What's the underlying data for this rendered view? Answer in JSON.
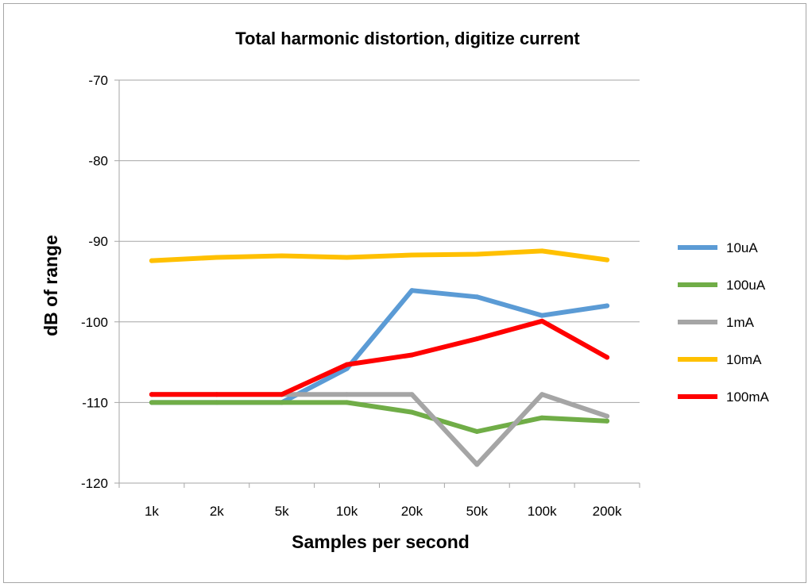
{
  "chart_data": {
    "type": "line",
    "title": "Total harmonic distortion, digitize current",
    "xlabel": "Samples per second",
    "ylabel": "dB of range",
    "categories": [
      "1k",
      "2k",
      "5k",
      "10k",
      "20k",
      "50k",
      "100k",
      "200k"
    ],
    "ylim": [
      -120,
      -70
    ],
    "yticks": [
      -70,
      -80,
      -90,
      -100,
      -110,
      -120
    ],
    "grid": "horizontal",
    "legend_position": "right",
    "series": [
      {
        "name": "10uA",
        "color": "#5b9bd5",
        "values": [
          -110,
          -110,
          -110,
          -105.8,
          -96.1,
          -96.9,
          -99.2,
          -98.0
        ]
      },
      {
        "name": "100uA",
        "color": "#70ad47",
        "values": [
          -110,
          -110,
          -110,
          -110,
          -111.2,
          -113.6,
          -111.9,
          -112.3
        ]
      },
      {
        "name": "1mA",
        "color": "#a5a5a5",
        "values": [
          -109,
          -109,
          -109,
          -109,
          -109,
          -117.7,
          -109,
          -111.7
        ]
      },
      {
        "name": "10mA",
        "color": "#ffc000",
        "values": [
          -92.4,
          -92.0,
          -91.8,
          -92.0,
          -91.7,
          -91.6,
          -91.2,
          -92.3
        ]
      },
      {
        "name": "100mA",
        "color": "#ff0000",
        "values": [
          -109,
          -109,
          -109,
          -105.3,
          -104.1,
          -102.1,
          -99.9,
          -104.4
        ]
      }
    ]
  }
}
